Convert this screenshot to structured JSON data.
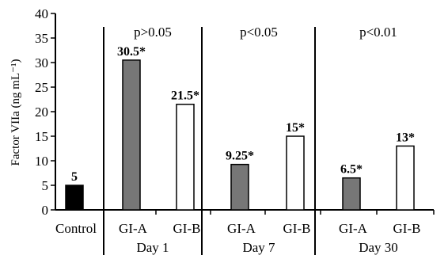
{
  "chart_data": {
    "type": "bar",
    "ylabel": "Factor VIIa (ng mL⁻¹)",
    "ylim": [
      0,
      40
    ],
    "yticks": [
      0,
      5,
      10,
      15,
      20,
      25,
      30,
      35,
      40
    ],
    "grid": false,
    "bars": [
      {
        "category": "Control",
        "group": "",
        "value": 5,
        "label": "5",
        "fill": "#000000"
      },
      {
        "category": "GI-A",
        "group": "Day 1",
        "value": 30.5,
        "label": "30.5*",
        "fill": "#777777"
      },
      {
        "category": "GI-B",
        "group": "Day 1",
        "value": 21.5,
        "label": "21.5*",
        "fill": "#ffffff"
      },
      {
        "category": "GI-A",
        "group": "Day 7",
        "value": 9.25,
        "label": "9.25*",
        "fill": "#777777"
      },
      {
        "category": "GI-B",
        "group": "Day 7",
        "value": 15,
        "label": "15*",
        "fill": "#ffffff"
      },
      {
        "category": "GI-A",
        "group": "Day 30",
        "value": 6.5,
        "label": "6.5*",
        "fill": "#777777"
      },
      {
        "category": "GI-B",
        "group": "Day 30",
        "value": 13,
        "label": "13*",
        "fill": "#ffffff"
      }
    ],
    "groups": [
      {
        "name": "Day 1",
        "pvalue": "p>0.05"
      },
      {
        "name": "Day 7",
        "pvalue": "p<0.05"
      },
      {
        "name": "Day 30",
        "pvalue": "p<0.01"
      }
    ]
  }
}
